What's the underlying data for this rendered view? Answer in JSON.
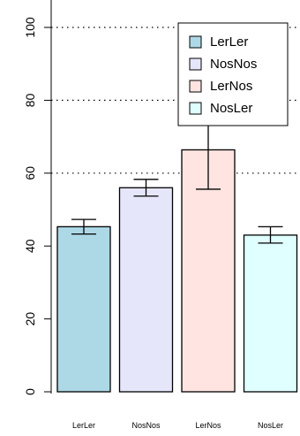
{
  "chart_data": {
    "type": "bar",
    "title": "",
    "xlabel": "",
    "ylabel": "",
    "categories": [
      "LerLer",
      "NosNos",
      "LerNos",
      "NosLer"
    ],
    "values": [
      45.3,
      56,
      66.4,
      43
    ],
    "error": [
      [
        43.3,
        47.3
      ],
      [
        53.7,
        58.3
      ],
      [
        55.6,
        77.2
      ],
      [
        40.8,
        45.3
      ]
    ],
    "colors": [
      "#add8e6",
      "#e6e6fa",
      "#ffe4e1",
      "#e0ffff"
    ],
    "ylim": [
      0,
      100
    ],
    "yticks": [
      "0",
      "20",
      "40",
      "60",
      "80",
      "100"
    ],
    "grid_lines_at": [
      60,
      80,
      100
    ],
    "grid": "dotted horizontal",
    "legend": {
      "position": "top-right",
      "entries": [
        "LerLer",
        "NosNos",
        "LerNos",
        "NosLer"
      ]
    }
  }
}
